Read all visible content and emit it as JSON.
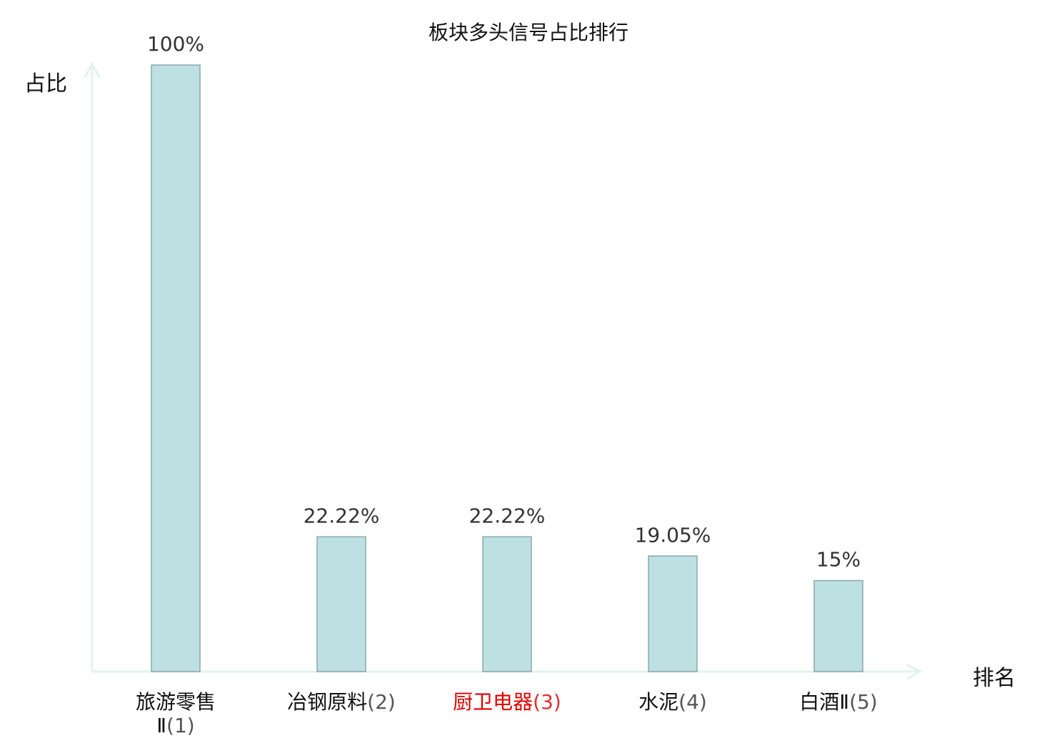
{
  "chart_data": {
    "type": "bar",
    "title": "板块多头信号占比排行",
    "ylabel": "占比",
    "xlabel": "排名",
    "ylim": [
      0,
      100
    ],
    "categories": [
      {
        "name": "旅游零售Ⅱ",
        "rank": "(1)",
        "highlight": false
      },
      {
        "name": "冶钢原料",
        "rank": "(2)",
        "highlight": false
      },
      {
        "name": "厨卫电器",
        "rank": "(3)",
        "highlight": true
      },
      {
        "name": "水泥",
        "rank": "(4)",
        "highlight": false
      },
      {
        "name": "白酒Ⅱ",
        "rank": "(5)",
        "highlight": false
      }
    ],
    "values": [
      100,
      22.22,
      22.22,
      19.05,
      15
    ],
    "value_labels": [
      "100%",
      "22.22%",
      "22.22%",
      "19.05%",
      "15%"
    ],
    "colors": {
      "bar_fill": "#bde0e2",
      "bar_stroke": "#8aa8a8",
      "axis": "#e2f3ef",
      "highlight": "#e00000"
    }
  }
}
